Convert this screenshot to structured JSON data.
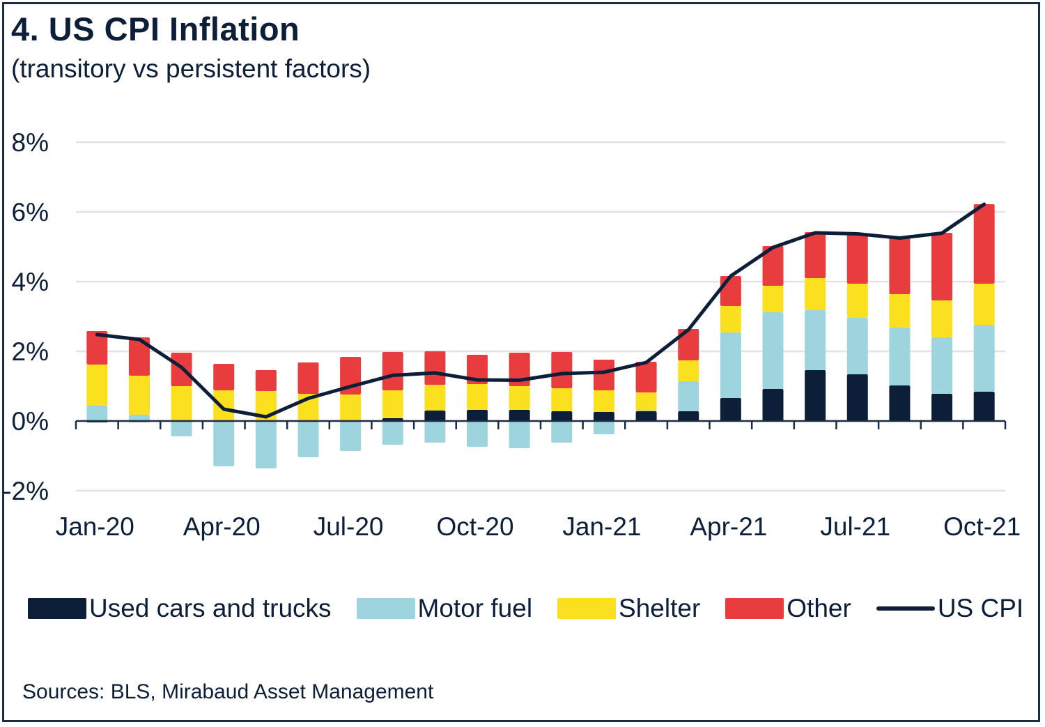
{
  "header": {
    "title": "4. US CPI Inflation",
    "subtitle": "(transitory vs persistent factors)"
  },
  "source": "Sources: BLS, Mirabaud Asset Management",
  "colors": {
    "used_cars": "#0d1f38",
    "motor_fuel": "#9dd4dd",
    "shelter": "#fbe01f",
    "other": "#e83c3e",
    "cpi_line": "#0d1f38",
    "grid": "#e3e3e3",
    "axis": "#1c2c45"
  },
  "legend": [
    {
      "label": "Used cars and trucks",
      "type": "box",
      "color_key": "used_cars"
    },
    {
      "label": "Motor fuel",
      "type": "box",
      "color_key": "motor_fuel"
    },
    {
      "label": "Shelter",
      "type": "box",
      "color_key": "shelter"
    },
    {
      "label": "Other",
      "type": "box",
      "color_key": "other"
    },
    {
      "label": "US CPI",
      "type": "line",
      "color_key": "cpi_line"
    }
  ],
  "chart_data": {
    "type": "bar",
    "stacked": true,
    "title": "4. US CPI Inflation",
    "subtitle": "(transitory vs persistent factors)",
    "xlabel": "",
    "ylabel": "",
    "ylim": [
      -2,
      8
    ],
    "yticks": [
      -2,
      0,
      2,
      4,
      6,
      8
    ],
    "ytick_labels": [
      "-2%",
      "0%",
      "2%",
      "4%",
      "6%",
      "8%"
    ],
    "grid": true,
    "legend_position": "bottom",
    "categories": [
      "Jan-20",
      "Feb-20",
      "Mar-20",
      "Apr-20",
      "May-20",
      "Jun-20",
      "Jul-20",
      "Aug-20",
      "Sep-20",
      "Oct-20",
      "Nov-20",
      "Dec-20",
      "Jan-21",
      "Feb-21",
      "Mar-21",
      "Apr-21",
      "May-21",
      "Jun-21",
      "Jul-21",
      "Aug-21",
      "Sep-21",
      "Oct-21"
    ],
    "xtick_labels": [
      {
        "index": 0,
        "label": "Jan-20"
      },
      {
        "index": 3,
        "label": "Apr-20"
      },
      {
        "index": 6,
        "label": "Jul-20"
      },
      {
        "index": 9,
        "label": "Oct-20"
      },
      {
        "index": 12,
        "label": "Jan-21"
      },
      {
        "index": 15,
        "label": "Apr-21"
      },
      {
        "index": 18,
        "label": "Jul-21"
      },
      {
        "index": 21,
        "label": "Oct-21"
      }
    ],
    "series": [
      {
        "name": "Used cars and trucks",
        "kind": "bar",
        "values": [
          -0.04,
          -0.03,
          0.0,
          0.0,
          0.0,
          0.0,
          0.0,
          0.08,
          0.3,
          0.32,
          0.32,
          0.28,
          0.26,
          0.28,
          0.28,
          0.66,
          0.92,
          1.46,
          1.34,
          1.02,
          0.78,
          0.84
        ]
      },
      {
        "name": "Motor fuel",
        "kind": "bar",
        "values": [
          0.44,
          0.18,
          -0.44,
          -1.3,
          -1.36,
          -1.04,
          -0.86,
          -0.68,
          -0.62,
          -0.74,
          -0.78,
          -0.62,
          -0.38,
          0.02,
          0.86,
          1.88,
          2.2,
          1.72,
          1.62,
          1.66,
          1.62,
          1.92
        ]
      },
      {
        "name": "Shelter",
        "kind": "bar",
        "values": [
          1.18,
          1.12,
          1.0,
          0.88,
          0.86,
          0.78,
          0.76,
          0.8,
          0.74,
          0.74,
          0.68,
          0.66,
          0.62,
          0.52,
          0.6,
          0.76,
          0.76,
          0.92,
          0.98,
          0.96,
          1.06,
          1.18
        ]
      },
      {
        "name": "Other",
        "kind": "bar",
        "values": [
          0.96,
          1.1,
          0.96,
          0.76,
          0.6,
          0.9,
          1.08,
          1.1,
          0.96,
          0.84,
          0.96,
          1.04,
          0.88,
          0.88,
          0.9,
          0.86,
          1.14,
          1.32,
          1.42,
          1.64,
          1.94,
          2.28
        ]
      },
      {
        "name": "US CPI",
        "kind": "line",
        "values": [
          2.48,
          2.34,
          1.54,
          0.34,
          0.12,
          0.65,
          0.99,
          1.31,
          1.38,
          1.18,
          1.17,
          1.36,
          1.4,
          1.68,
          2.62,
          4.16,
          4.98,
          5.4,
          5.37,
          5.25,
          5.39,
          6.22
        ]
      }
    ]
  }
}
